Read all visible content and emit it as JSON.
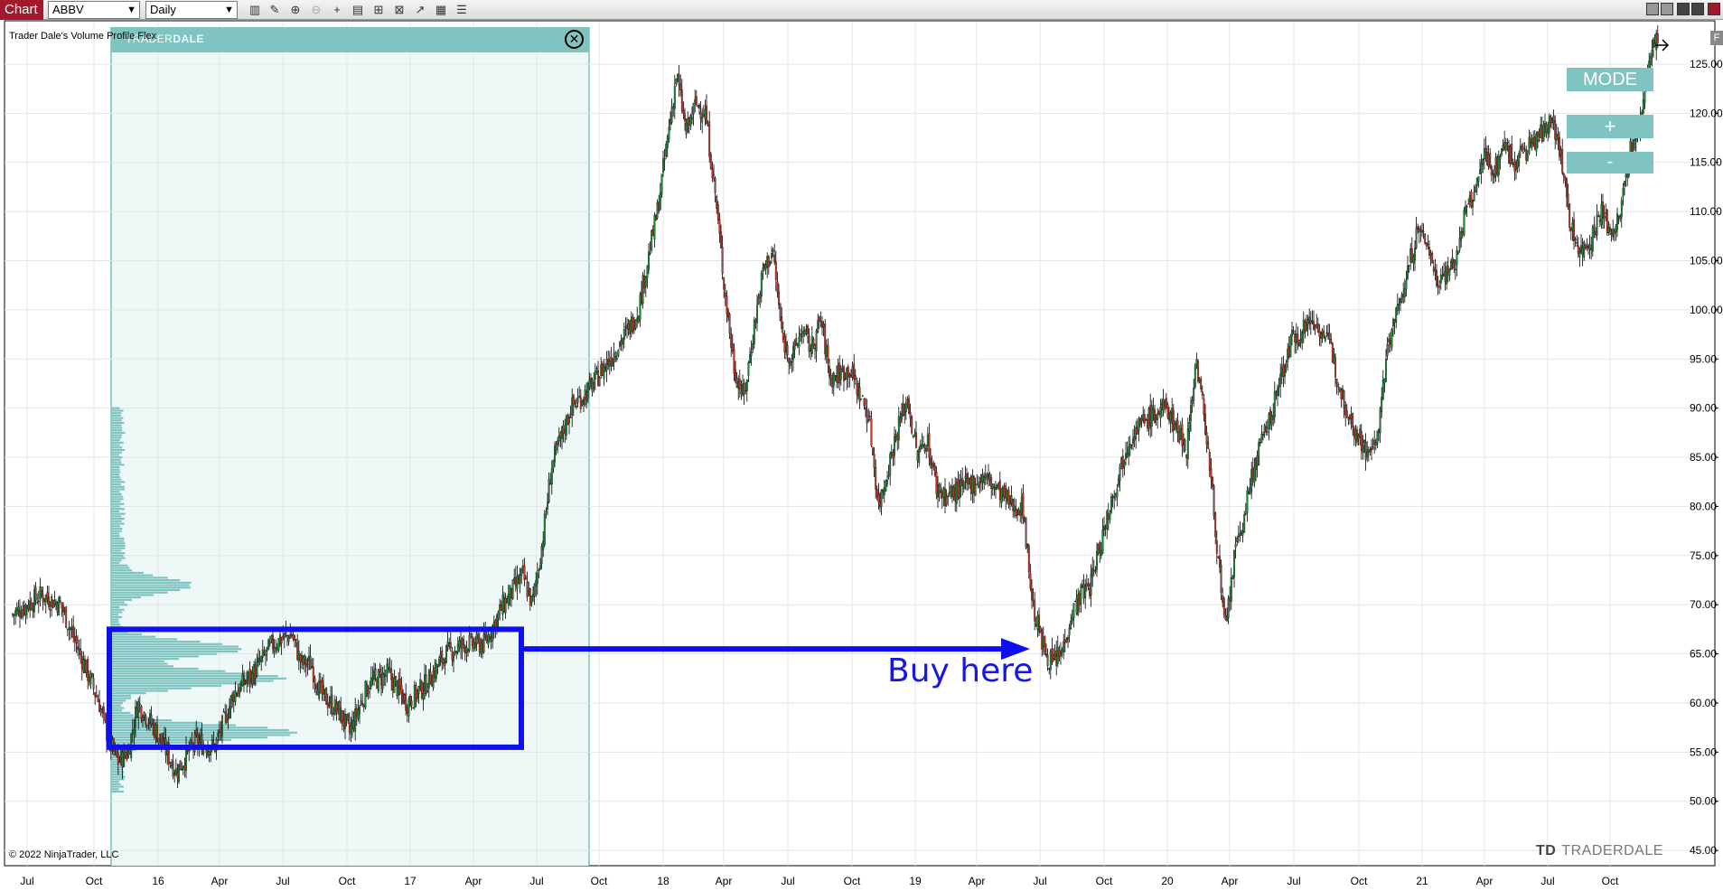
{
  "toolbar": {
    "tab_label": "Chart",
    "instrument": "ABBV",
    "timeframe": "Daily",
    "tools": [
      "bar-chart-icon",
      "pencil-icon",
      "zoom-in-icon",
      "zoom-out-icon",
      "crosshair-icon",
      "properties-icon",
      "templates-icon",
      "strategies-icon",
      "drawing-tools-icon",
      "data-box-icon",
      "instrument-list-icon"
    ]
  },
  "indicator": {
    "label": "Trader Dale's Volume Profile Flex",
    "panel_logo_a": "TRADER",
    "panel_logo_b": "DALE",
    "close_glyph": "✕",
    "panel_color": "#7fc4c1"
  },
  "side_buttons": {
    "mode": "MODE",
    "plus": "+",
    "minus": "-"
  },
  "annotation": {
    "text": "Buy here",
    "color": "#1818e0"
  },
  "copyright": "© 2022 NinjaTrader, LLC",
  "watermark": {
    "mark": "TD",
    "name": "TRADERDALE"
  },
  "corner_glyph": "F",
  "chart_data": {
    "type": "candlestick",
    "instrument": "ABBV",
    "interval": "Daily",
    "y_ticks": [
      "125.00",
      "120.00",
      "115.00",
      "110.00",
      "105.00",
      "100.00",
      "95.00",
      "90.00",
      "85.00",
      "80.00",
      "75.00",
      "70.00",
      "65.00",
      "60.00",
      "55.00",
      "50.00",
      "45.00"
    ],
    "x_ticks": [
      "Jul",
      "Oct",
      "16",
      "Apr",
      "Jul",
      "Oct",
      "17",
      "Apr",
      "Jul",
      "Oct",
      "18",
      "Apr",
      "Jul",
      "Oct",
      "19",
      "Apr",
      "Jul",
      "Oct",
      "20",
      "Apr",
      "Jul",
      "Oct",
      "21",
      "Apr",
      "Jul",
      "Oct"
    ],
    "ylim": [
      44,
      129.5
    ],
    "price_path": [
      [
        0,
        69
      ],
      [
        3,
        71
      ],
      [
        5,
        70
      ],
      [
        7,
        65
      ],
      [
        9,
        60
      ],
      [
        10,
        56
      ],
      [
        11,
        54
      ],
      [
        12,
        55
      ],
      [
        13,
        60
      ],
      [
        15,
        57
      ],
      [
        17,
        53
      ],
      [
        19,
        56
      ],
      [
        21,
        55.5
      ],
      [
        23,
        61
      ],
      [
        25,
        63
      ],
      [
        27,
        66
      ],
      [
        29,
        67
      ],
      [
        30,
        64
      ],
      [
        31,
        64
      ],
      [
        32,
        61
      ],
      [
        34,
        59
      ],
      [
        35,
        57
      ],
      [
        37,
        62
      ],
      [
        39,
        63
      ],
      [
        41,
        60
      ],
      [
        43,
        62
      ],
      [
        45,
        65
      ],
      [
        47,
        66
      ],
      [
        49,
        66
      ],
      [
        51,
        70
      ],
      [
        53,
        73
      ],
      [
        54,
        70
      ],
      [
        55,
        76
      ],
      [
        56,
        84
      ],
      [
        58,
        90
      ],
      [
        60,
        92
      ],
      [
        62,
        95
      ],
      [
        64,
        98
      ],
      [
        65,
        100
      ],
      [
        66,
        105
      ],
      [
        67,
        110
      ],
      [
        68,
        117
      ],
      [
        69,
        124
      ],
      [
        70,
        118
      ],
      [
        71,
        121
      ],
      [
        72,
        120
      ],
      [
        73,
        112
      ],
      [
        74,
        102
      ],
      [
        75,
        94
      ],
      [
        76,
        91
      ],
      [
        77,
        98
      ],
      [
        78,
        104
      ],
      [
        79,
        106
      ],
      [
        80,
        97
      ],
      [
        81,
        95
      ],
      [
        82,
        98
      ],
      [
        83,
        96
      ],
      [
        84,
        99
      ],
      [
        85,
        93
      ],
      [
        87,
        94
      ],
      [
        89,
        89
      ],
      [
        90,
        80
      ],
      [
        92,
        88
      ],
      [
        93,
        91
      ],
      [
        94,
        85
      ],
      [
        95,
        87
      ],
      [
        96,
        82
      ],
      [
        97,
        81
      ],
      [
        99,
        82
      ],
      [
        101,
        83
      ],
      [
        103,
        81
      ],
      [
        104,
        80
      ],
      [
        105,
        80
      ],
      [
        106,
        70
      ],
      [
        107,
        66
      ],
      [
        108,
        64
      ],
      [
        109,
        65
      ],
      [
        110,
        69
      ],
      [
        111,
        71
      ],
      [
        112,
        72
      ],
      [
        114,
        80
      ],
      [
        116,
        87
      ],
      [
        118,
        89
      ],
      [
        120,
        90
      ],
      [
        122,
        86
      ],
      [
        123,
        95
      ],
      [
        124,
        88
      ],
      [
        125,
        78
      ],
      [
        126,
        67
      ],
      [
        127,
        75
      ],
      [
        128,
        79
      ],
      [
        129,
        84
      ],
      [
        130,
        87
      ],
      [
        131,
        90
      ],
      [
        132,
        94
      ],
      [
        133,
        97
      ],
      [
        134,
        98
      ],
      [
        135,
        99
      ],
      [
        136,
        98
      ],
      [
        137,
        96
      ],
      [
        138,
        92
      ],
      [
        139,
        89
      ],
      [
        140,
        87
      ],
      [
        141,
        85
      ],
      [
        142,
        88
      ],
      [
        143,
        97
      ],
      [
        144,
        100
      ],
      [
        145,
        104
      ],
      [
        146,
        108
      ],
      [
        147,
        107
      ],
      [
        148,
        103
      ],
      [
        149,
        104
      ],
      [
        150,
        105
      ],
      [
        151,
        110
      ],
      [
        152,
        112
      ],
      [
        153,
        116
      ],
      [
        154,
        114
      ],
      [
        155,
        117
      ],
      [
        156,
        115
      ],
      [
        157,
        116
      ],
      [
        158,
        117
      ],
      [
        159,
        118
      ],
      [
        160,
        120
      ],
      [
        161,
        115
      ],
      [
        162,
        108
      ],
      [
        163,
        106
      ],
      [
        164,
        107
      ],
      [
        165,
        110
      ],
      [
        166,
        108
      ],
      [
        167,
        109
      ],
      [
        168,
        116
      ],
      [
        169,
        118
      ],
      [
        170,
        125
      ],
      [
        171,
        128
      ]
    ],
    "volume_profile_price_range": [
      51,
      90
    ],
    "volume_profile_peaks": [
      {
        "price": 57,
        "level": 1.0
      },
      {
        "price": 62.5,
        "level": 0.92
      },
      {
        "price": 65.5,
        "level": 0.68
      },
      {
        "price": 72,
        "level": 0.4
      }
    ],
    "buy_zone": {
      "price_top": 67.5,
      "price_bottom": 55.5,
      "target_price": 65.5
    },
    "legend": "none"
  }
}
